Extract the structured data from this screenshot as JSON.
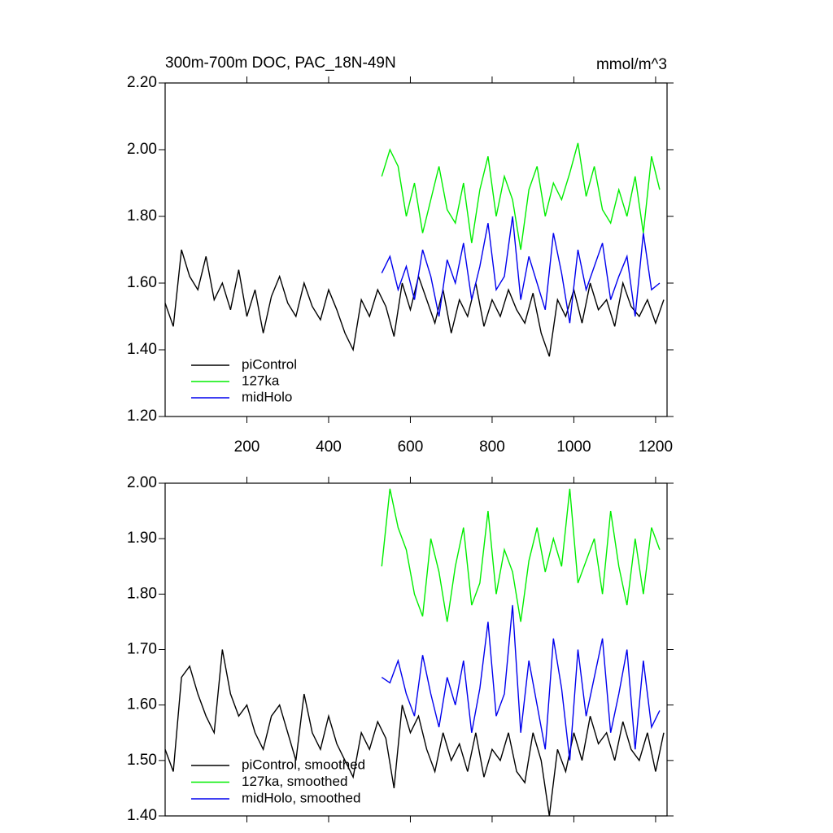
{
  "chart_data": [
    {
      "type": "line",
      "title": "300m-700m DOC, PAC_18N-49N",
      "unit_label": "mmol/m^3",
      "xlim": [
        0,
        1228
      ],
      "xticks": [
        200,
        400,
        600,
        800,
        1000,
        1200
      ],
      "ylim": [
        1.2,
        2.2
      ],
      "yticks": [
        {
          "value": 1.2,
          "label": "1.20"
        },
        {
          "value": 1.4,
          "label": "1.40"
        },
        {
          "value": 1.6,
          "label": "1.60"
        },
        {
          "value": 1.8,
          "label": "1.80"
        },
        {
          "value": 2.0,
          "label": "2.00"
        },
        {
          "value": 2.2,
          "label": "2.20"
        }
      ],
      "legend": "lower-left",
      "series": [
        {
          "name": "piControl",
          "color": "#000000",
          "x": [
            0,
            20,
            40,
            60,
            80,
            100,
            120,
            140,
            160,
            180,
            200,
            220,
            240,
            260,
            280,
            300,
            320,
            340,
            360,
            380,
            400,
            420,
            440,
            460,
            480,
            500,
            520,
            540,
            560,
            580,
            600,
            620,
            640,
            660,
            680,
            700,
            720,
            740,
            760,
            780,
            800,
            820,
            840,
            860,
            880,
            900,
            920,
            940,
            960,
            980,
            1000,
            1020,
            1040,
            1060,
            1080,
            1100,
            1120,
            1140,
            1160,
            1180,
            1200,
            1220
          ],
          "values": [
            1.54,
            1.47,
            1.7,
            1.62,
            1.58,
            1.68,
            1.55,
            1.6,
            1.52,
            1.64,
            1.5,
            1.58,
            1.45,
            1.56,
            1.62,
            1.54,
            1.5,
            1.6,
            1.53,
            1.49,
            1.58,
            1.52,
            1.45,
            1.4,
            1.55,
            1.5,
            1.58,
            1.53,
            1.44,
            1.6,
            1.52,
            1.62,
            1.55,
            1.48,
            1.58,
            1.45,
            1.55,
            1.5,
            1.6,
            1.47,
            1.55,
            1.5,
            1.58,
            1.52,
            1.48,
            1.57,
            1.45,
            1.38,
            1.55,
            1.5,
            1.58,
            1.48,
            1.6,
            1.52,
            1.55,
            1.47,
            1.6,
            1.53,
            1.5,
            1.55,
            1.48,
            1.55
          ]
        },
        {
          "name": "127ka",
          "color": "#00ee00",
          "x": [
            530,
            550,
            570,
            590,
            610,
            630,
            650,
            670,
            690,
            710,
            730,
            750,
            770,
            790,
            810,
            830,
            850,
            870,
            890,
            910,
            930,
            950,
            970,
            990,
            1010,
            1030,
            1050,
            1070,
            1090,
            1110,
            1130,
            1150,
            1170,
            1190,
            1210
          ],
          "values": [
            1.92,
            2.0,
            1.95,
            1.8,
            1.9,
            1.75,
            1.85,
            1.95,
            1.82,
            1.78,
            1.9,
            1.72,
            1.88,
            1.98,
            1.8,
            1.92,
            1.85,
            1.7,
            1.88,
            1.95,
            1.8,
            1.9,
            1.85,
            1.93,
            2.02,
            1.86,
            1.95,
            1.82,
            1.78,
            1.88,
            1.8,
            1.92,
            1.75,
            1.98,
            1.88
          ]
        },
        {
          "name": "midHolo",
          "color": "#0000ee",
          "x": [
            530,
            550,
            570,
            590,
            610,
            630,
            650,
            670,
            690,
            710,
            730,
            750,
            770,
            790,
            810,
            830,
            850,
            870,
            890,
            910,
            930,
            950,
            970,
            990,
            1010,
            1030,
            1050,
            1070,
            1090,
            1110,
            1130,
            1150,
            1170,
            1190,
            1210
          ],
          "values": [
            1.63,
            1.68,
            1.58,
            1.65,
            1.55,
            1.7,
            1.62,
            1.5,
            1.67,
            1.6,
            1.72,
            1.55,
            1.65,
            1.78,
            1.58,
            1.62,
            1.8,
            1.55,
            1.68,
            1.6,
            1.52,
            1.75,
            1.63,
            1.48,
            1.7,
            1.58,
            1.65,
            1.72,
            1.55,
            1.62,
            1.68,
            1.5,
            1.75,
            1.58,
            1.6
          ]
        }
      ]
    },
    {
      "type": "line",
      "xlim": [
        0,
        1228
      ],
      "ylim": [
        1.4,
        2.0
      ],
      "yticks": [
        {
          "value": 1.4,
          "label": "1.40"
        },
        {
          "value": 1.5,
          "label": "1.50"
        },
        {
          "value": 1.6,
          "label": "1.60"
        },
        {
          "value": 1.7,
          "label": "1.70"
        },
        {
          "value": 1.8,
          "label": "1.80"
        },
        {
          "value": 1.9,
          "label": "1.90"
        },
        {
          "value": 2.0,
          "label": "2.00"
        }
      ],
      "legend": "lower-left",
      "series": [
        {
          "name": "piControl, smoothed",
          "color": "#000000",
          "x": [
            0,
            20,
            40,
            60,
            80,
            100,
            120,
            140,
            160,
            180,
            200,
            220,
            240,
            260,
            280,
            300,
            320,
            340,
            360,
            380,
            400,
            420,
            440,
            460,
            480,
            500,
            520,
            540,
            560,
            580,
            600,
            620,
            640,
            660,
            680,
            700,
            720,
            740,
            760,
            780,
            800,
            820,
            840,
            860,
            880,
            900,
            920,
            940,
            960,
            980,
            1000,
            1020,
            1040,
            1060,
            1080,
            1100,
            1120,
            1140,
            1160,
            1180,
            1200,
            1220
          ],
          "values": [
            1.52,
            1.48,
            1.65,
            1.67,
            1.62,
            1.58,
            1.55,
            1.7,
            1.62,
            1.58,
            1.6,
            1.55,
            1.52,
            1.58,
            1.6,
            1.55,
            1.5,
            1.62,
            1.55,
            1.52,
            1.58,
            1.53,
            1.5,
            1.47,
            1.55,
            1.52,
            1.57,
            1.54,
            1.45,
            1.6,
            1.55,
            1.58,
            1.52,
            1.48,
            1.55,
            1.5,
            1.53,
            1.48,
            1.55,
            1.47,
            1.52,
            1.5,
            1.55,
            1.48,
            1.46,
            1.55,
            1.5,
            1.4,
            1.52,
            1.48,
            1.55,
            1.5,
            1.58,
            1.53,
            1.55,
            1.5,
            1.57,
            1.52,
            1.5,
            1.55,
            1.48,
            1.55
          ]
        },
        {
          "name": "127ka, smoothed",
          "color": "#00ee00",
          "x": [
            530,
            550,
            570,
            590,
            610,
            630,
            650,
            670,
            690,
            710,
            730,
            750,
            770,
            790,
            810,
            830,
            850,
            870,
            890,
            910,
            930,
            950,
            970,
            990,
            1010,
            1030,
            1050,
            1070,
            1090,
            1110,
            1130,
            1150,
            1170,
            1190,
            1210
          ],
          "values": [
            1.85,
            1.99,
            1.92,
            1.88,
            1.8,
            1.76,
            1.9,
            1.84,
            1.75,
            1.85,
            1.92,
            1.78,
            1.82,
            1.95,
            1.8,
            1.88,
            1.84,
            1.75,
            1.86,
            1.92,
            1.84,
            1.9,
            1.85,
            1.99,
            1.82,
            1.86,
            1.9,
            1.8,
            1.95,
            1.85,
            1.78,
            1.9,
            1.8,
            1.92,
            1.88
          ]
        },
        {
          "name": "midHolo, smoothed",
          "color": "#0000ee",
          "x": [
            530,
            550,
            570,
            590,
            610,
            630,
            650,
            670,
            690,
            710,
            730,
            750,
            770,
            790,
            810,
            830,
            850,
            870,
            890,
            910,
            930,
            950,
            970,
            990,
            1010,
            1030,
            1050,
            1070,
            1090,
            1110,
            1130,
            1150,
            1170,
            1190,
            1210
          ],
          "values": [
            1.65,
            1.64,
            1.68,
            1.62,
            1.58,
            1.69,
            1.62,
            1.56,
            1.65,
            1.6,
            1.68,
            1.55,
            1.63,
            1.75,
            1.58,
            1.62,
            1.78,
            1.55,
            1.68,
            1.6,
            1.52,
            1.72,
            1.63,
            1.5,
            1.7,
            1.58,
            1.65,
            1.72,
            1.55,
            1.62,
            1.7,
            1.52,
            1.68,
            1.56,
            1.59
          ]
        }
      ]
    }
  ]
}
